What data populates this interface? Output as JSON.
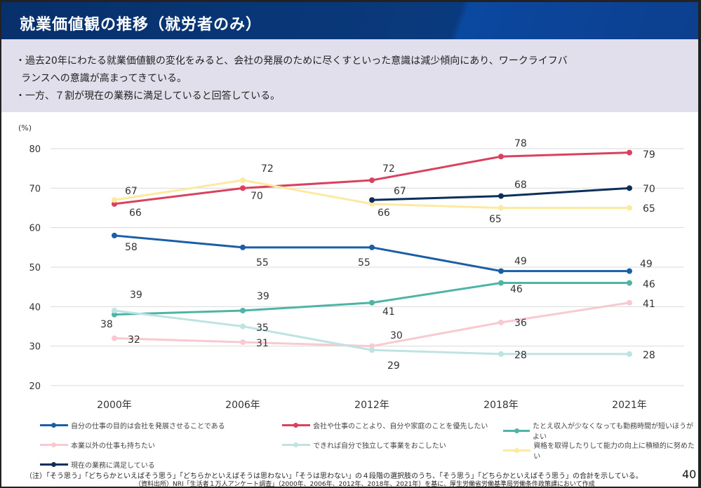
{
  "title": "就業価値観の推移（就労者のみ）",
  "summary": [
    "・過去20年にわたる就業価値観の変化をみると、会社の発展のために尽くすといった意識は減少傾向にあり、ワークライフバ",
    "ランスへの意識が高まってきている。",
    "・一方、７割が現在の業務に満足していると回答している。"
  ],
  "chart_data": {
    "type": "line",
    "ylabel": "(%)",
    "ylim": [
      20,
      80
    ],
    "yticks": [
      20,
      30,
      40,
      50,
      60,
      70,
      80
    ],
    "categories": [
      "2000年",
      "2006年",
      "2012年",
      "2018年",
      "2021年"
    ],
    "grid": true,
    "legend_position": "bottom",
    "series": [
      {
        "name": "自分の仕事の目的は会社を発展させることである",
        "color": "#1a5ea8",
        "values": [
          58,
          55,
          55,
          49,
          49
        ]
      },
      {
        "name": "会社や仕事のことより、自分や家庭のことを優先したい",
        "color": "#d9415f",
        "values": [
          66,
          70,
          72,
          78,
          79
        ]
      },
      {
        "name": "たとえ収入が少なくなっても勤務時間が短いほうがよい",
        "color": "#4fb3a6",
        "values": [
          38,
          39,
          41,
          46,
          46
        ]
      },
      {
        "name": "本業以外の仕事も持ちたい",
        "color": "#f8c9d0",
        "values": [
          32,
          31,
          30,
          36,
          41
        ]
      },
      {
        "name": "できれば自分で独立して事業をおこしたい",
        "color": "#bfe3e3",
        "values": [
          39,
          35,
          29,
          28,
          28
        ]
      },
      {
        "name": "資格を取得したりして能力の向上に積極的に努めたい",
        "color": "#fde9a0",
        "values": [
          67,
          72,
          66,
          65,
          65
        ]
      },
      {
        "name": "現在の業務に満足している",
        "color": "#0b2f5b",
        "values": [
          null,
          null,
          67,
          68,
          70
        ]
      }
    ]
  },
  "note": "（注）「そう思う」「どちらかといえばそう思う」「どちらかといえばそうは思わない」「そうは思わない」の４段階の選択肢のうち、「そう思う」「どちらかといえばそう思う」の合計を示している。",
  "source": "（資料出所）NRI「生活者１万人アンケート調査」（2000年、2006年、2012年、2018年、2021年）を基に、厚生労働省労働基準局労働条件政策課において作成",
  "page_number": "40"
}
